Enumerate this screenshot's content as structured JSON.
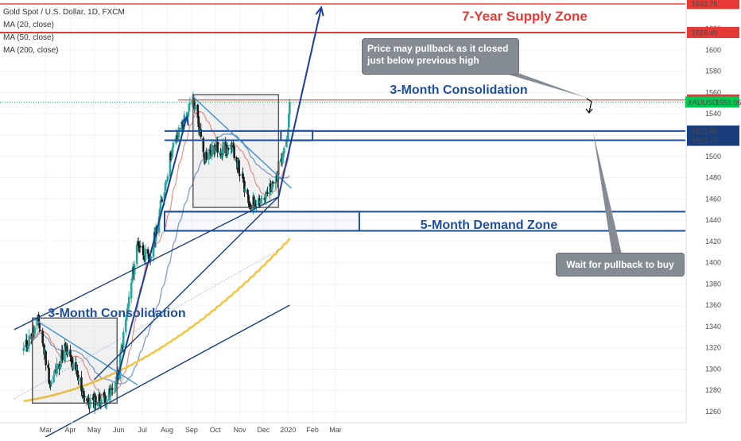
{
  "header": {
    "title": "Gold Spot / U.S. Dollar, 1D, FXCM",
    "studies": [
      "MA (20, close)",
      "MA (50, close)",
      "MA (200, close)"
    ]
  },
  "annotations": {
    "supply_zone": "7-Year Supply Zone",
    "consolidation_recent": "3-Month Consolidation",
    "consolidation_early": "3-Month Consolidation",
    "demand_zone": "5-Month Demand Zone",
    "callout_pullback": "Price may pullback as it closed just below previous high",
    "callout_buy": "Wait for pullback to buy"
  },
  "price_labels": {
    "top": "1643.76",
    "supply": "1616.40",
    "prev_high": "1552.98",
    "symbol": "XAUUSD",
    "last": "1551.06",
    "zone_high": "1523.80",
    "zone_low": "1515.10"
  },
  "colors": {
    "up": "#26a69a",
    "down": "#111111",
    "ma20": "#e9796f",
    "ma50": "#7e9cc8",
    "ma200": "#f5c542",
    "zone_line": "#1f4e9c",
    "supply_line": "#e53935",
    "last_price": "#00c853"
  },
  "chart_data": {
    "type": "candlestick",
    "title": "Gold Spot / U.S. Dollar, 1D, FXCM",
    "ylim": [
      1255,
      1648
    ],
    "y_ticks": [
      1260,
      1280,
      1300,
      1320,
      1340,
      1360,
      1380,
      1400,
      1420,
      1440,
      1460,
      1480,
      1500,
      1520,
      1540,
      1560,
      1580,
      1600,
      1620
    ],
    "x_ticks": [
      "Mar",
      "Apr",
      "May",
      "Jun",
      "Jul",
      "Aug",
      "Sep",
      "Oct",
      "Nov",
      "Dec",
      "2020",
      "Feb",
      "Mar"
    ],
    "anchors": [
      [
        "2019-02-01",
        1318
      ],
      [
        "2019-02-20",
        1345
      ],
      [
        "2019-03-07",
        1285
      ],
      [
        "2019-03-25",
        1320
      ],
      [
        "2019-04-23",
        1268
      ],
      [
        "2019-05-20",
        1275
      ],
      [
        "2019-05-30",
        1290
      ],
      [
        "2019-06-25",
        1420
      ],
      [
        "2019-07-10",
        1400
      ],
      [
        "2019-08-07",
        1505
      ],
      [
        "2019-08-26",
        1540
      ],
      [
        "2019-09-04",
        1552
      ],
      [
        "2019-09-18",
        1500
      ],
      [
        "2019-10-03",
        1508
      ],
      [
        "2019-10-25",
        1505
      ],
      [
        "2019-11-12",
        1455
      ],
      [
        "2019-12-03",
        1462
      ],
      [
        "2019-12-16",
        1476
      ],
      [
        "2019-12-27",
        1512
      ],
      [
        "2019-12-31",
        1518
      ],
      [
        "2020-01-03",
        1551.06
      ]
    ],
    "ma20_final": 1505,
    "ma50_final": 1482,
    "ma200_start": 1270,
    "ma200_final": 1423,
    "levels": [
      {
        "name": "supply",
        "y": 1616.4
      },
      {
        "name": "previous high",
        "y": 1552.98
      },
      {
        "name": "zone high",
        "y": 1523.8
      },
      {
        "name": "zone low",
        "y": 1515.1
      }
    ],
    "boxes": [
      {
        "name": "3-Month Consolidation (early)",
        "from": "2019-02-12",
        "to": "2019-05-30",
        "y": [
          1268,
          1348
        ]
      },
      {
        "name": "3-Month Consolidation (recent)",
        "from": "2019-09-03",
        "to": "2019-12-20",
        "y": [
          1452,
          1558
        ]
      },
      {
        "name": "5-Month Demand Zone",
        "from": "2019-07-29",
        "to": "2020-03-31",
        "y": [
          1430,
          1448
        ]
      },
      {
        "name": "retest zone",
        "from": "2019-12-23",
        "to": "2020-02-01",
        "y": [
          1515,
          1524
        ]
      }
    ],
    "trendlines": [
      {
        "from": [
          "2019-01-20",
          1337
        ],
        "to": [
          "2019-12-20",
          1462
        ]
      },
      {
        "from": [
          "2019-02-01",
          1225
        ],
        "to": [
          "2020-01-03",
          1360
        ]
      },
      {
        "from": [
          "2019-02-12",
          1348
        ],
        "to": [
          "2019-06-25",
          1285
        ]
      },
      {
        "from": [
          "2019-09-03",
          1556
        ],
        "to": [
          "2020-01-05",
          1470
        ]
      },
      {
        "from": [
          "2019-05-01",
          1290
        ],
        "to": [
          "2019-12-20",
          1462
        ]
      }
    ],
    "arrows": [
      {
        "from": [
          "2019-05-30",
          1290
        ],
        "to": [
          "2019-08-26",
          1537
        ]
      },
      {
        "from": [
          "2019-12-20",
          1462
        ],
        "to": [
          "2020-02-12",
          1640
        ]
      }
    ]
  }
}
